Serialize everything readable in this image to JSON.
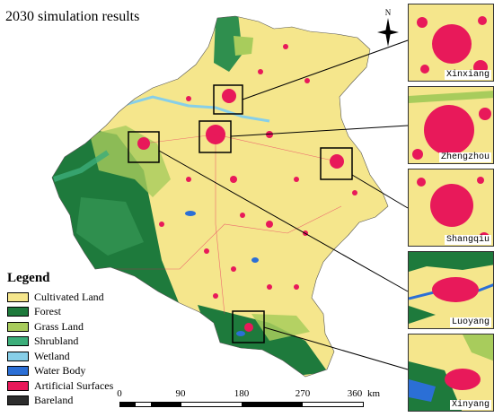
{
  "title": "2030 simulation results",
  "compass": {
    "letter": "N"
  },
  "legend": {
    "heading": "Legend",
    "items": [
      {
        "label": "Cultivated Land",
        "color": "#f5e68c"
      },
      {
        "label": "Forest",
        "color": "#1e7a3c"
      },
      {
        "label": "Grass Land",
        "color": "#a8cc5c"
      },
      {
        "label": "Shrubland",
        "color": "#3cae7a"
      },
      {
        "label": "Wetland",
        "color": "#87cfe8"
      },
      {
        "label": "Water Body",
        "color": "#2b6fd6"
      },
      {
        "label": "Artificial Surfaces",
        "color": "#e8195a"
      },
      {
        "label": "Bareland",
        "color": "#2d2d2d"
      }
    ]
  },
  "scalebar": {
    "ticks": [
      "0",
      "90",
      "180",
      "270",
      "360"
    ],
    "unit": "km"
  },
  "insets": [
    {
      "name": "Xinxiang"
    },
    {
      "name": "Zhengzhou"
    },
    {
      "name": "Shangqiu"
    },
    {
      "name": "Luoyang"
    },
    {
      "name": "Xinyang"
    }
  ]
}
